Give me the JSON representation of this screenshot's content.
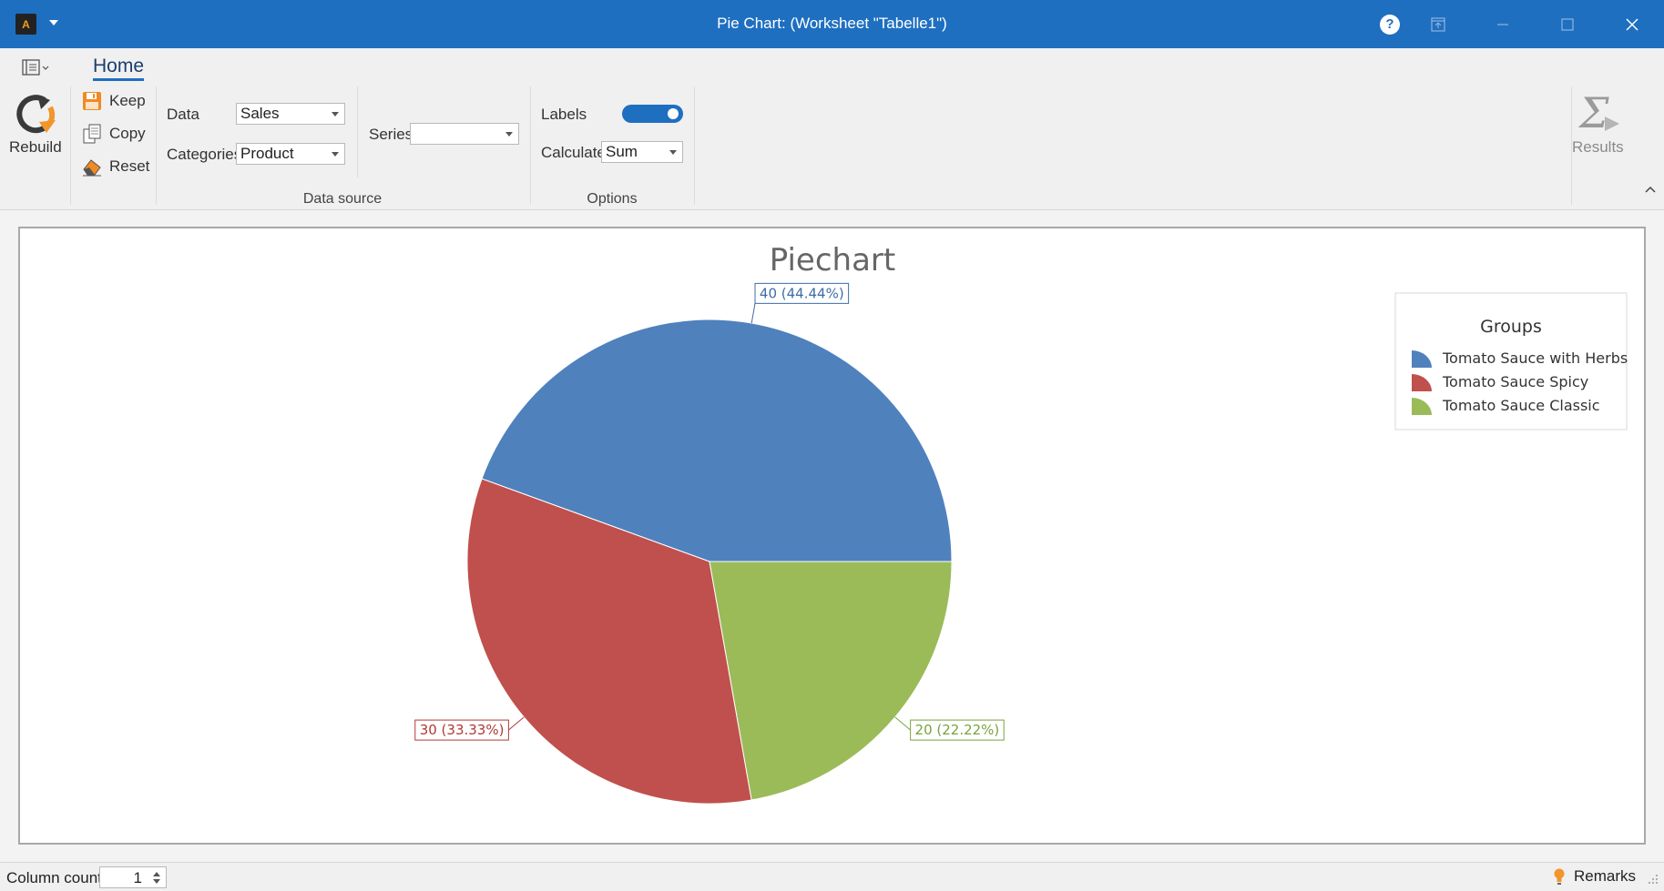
{
  "window": {
    "title": "Pie Chart:  (Worksheet \"Tabelle1\")"
  },
  "ribbon": {
    "tab_home": "Home",
    "rebuild_label": "Rebuild",
    "keep_label": "Keep",
    "copy_label": "Copy",
    "reset_label": "Reset",
    "data_label": "Data",
    "data_value": "Sales",
    "categories_label": "Categories",
    "categories_value": "Product",
    "series_label": "Series",
    "series_value": "",
    "data_source_group": "Data source",
    "labels_label": "Labels",
    "labels_on": true,
    "calculate_label": "Calculate",
    "calculate_value": "Sum",
    "options_group": "Options",
    "results_label": "Results"
  },
  "colors": {
    "title_bar": "#1e6fc0",
    "series_blue": "#4f81bd",
    "series_red": "#c0504d",
    "series_green": "#9bbb59"
  },
  "chart_data": {
    "type": "pie",
    "title": "Piechart",
    "legend_title": "Groups",
    "legend_position": "top-right",
    "categories": [
      "Tomato Sauce with Herbs",
      "Tomato Sauce Spicy",
      "Tomato Sauce Classic"
    ],
    "values": [
      40,
      30,
      20
    ],
    "data_labels": [
      "40 (44.44%)",
      "30 (33.33%)",
      "20 (22.22%)"
    ],
    "colors": [
      "#4f81bd",
      "#c0504d",
      "#9bbb59"
    ],
    "label_colors": [
      "#3d6da8",
      "#b03a36",
      "#7aa33c"
    ]
  },
  "statusbar": {
    "column_count_label": "Column count",
    "column_count_value": "1",
    "remarks_label": "Remarks"
  }
}
